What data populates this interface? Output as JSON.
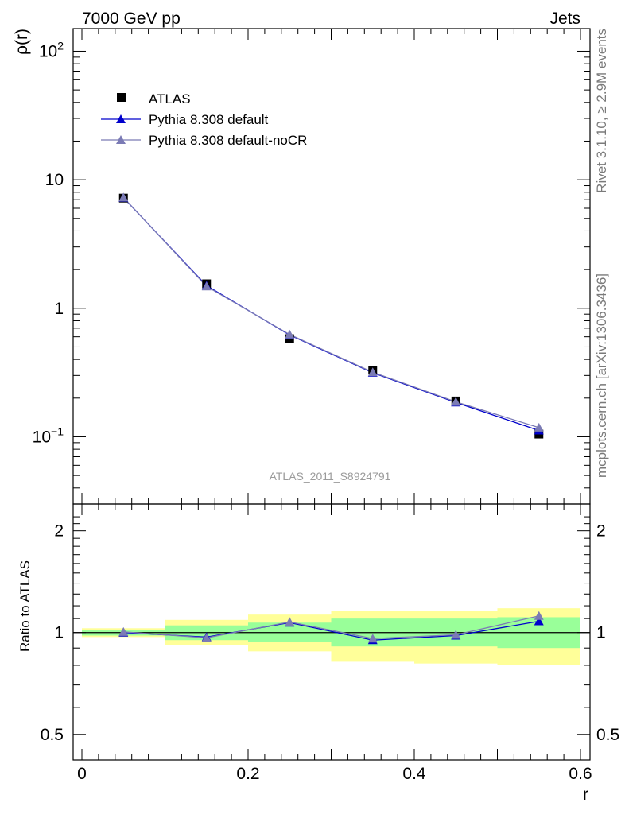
{
  "header": {
    "left": "7000 GeV pp",
    "right": "Jets"
  },
  "side_text": {
    "rivet": "Rivet 3.1.10, ≥ 2.9M events",
    "source": "mcplots.cern.ch [arXiv:1306.3436]"
  },
  "analysis_label": "ATLAS_2011_S8924791",
  "colors": {
    "atlas": "#000000",
    "pythia_default": "#0000cc",
    "pythia_nocr": "#7b7bb5",
    "band_inner": "#99ff99",
    "band_outer": "#ffff99"
  },
  "chart_data": [
    {
      "type": "line",
      "panel": "main",
      "ylabel": "ρ(r)",
      "yscale": "log",
      "ylim": [
        0.03,
        150
      ],
      "xlim": [
        0,
        0.6
      ],
      "ytick_labels": [
        "10⁻¹",
        "1",
        "10",
        "10²"
      ],
      "legend_position": "top-left",
      "x": [
        0.05,
        0.15,
        0.25,
        0.35,
        0.45,
        0.55
      ],
      "series": [
        {
          "name": "ATLAS",
          "marker": "square",
          "values": [
            7.2,
            1.55,
            0.58,
            0.33,
            0.19,
            0.105
          ]
        },
        {
          "name": "Pythia 8.308 default",
          "marker": "triangle",
          "values": [
            7.25,
            1.5,
            0.62,
            0.315,
            0.185,
            0.112
          ]
        },
        {
          "name": "Pythia 8.308 default-noCR",
          "marker": "triangle",
          "values": [
            7.28,
            1.48,
            0.625,
            0.318,
            0.187,
            0.118
          ]
        }
      ]
    },
    {
      "type": "line",
      "panel": "ratio",
      "ylabel": "Ratio to ATLAS",
      "xlabel": "r",
      "yscale": "log",
      "ylim": [
        0.42,
        2.4
      ],
      "xlim": [
        0,
        0.6
      ],
      "xtick_labels": [
        "0",
        "0.2",
        "0.4",
        "0.6"
      ],
      "ytick_labels": [
        "0.5",
        "1",
        "2"
      ],
      "x": [
        0.05,
        0.15,
        0.25,
        0.35,
        0.45,
        0.55
      ],
      "bin_edges": [
        0,
        0.1,
        0.2,
        0.3,
        0.4,
        0.5,
        0.6
      ],
      "band_inner": [
        [
          0.98,
          1.02
        ],
        [
          0.95,
          1.05
        ],
        [
          0.94,
          1.07
        ],
        [
          0.91,
          1.1
        ],
        [
          0.91,
          1.1
        ],
        [
          0.9,
          1.11
        ]
      ],
      "band_outer": [
        [
          0.97,
          1.03
        ],
        [
          0.92,
          1.09
        ],
        [
          0.88,
          1.13
        ],
        [
          0.82,
          1.16
        ],
        [
          0.81,
          1.16
        ],
        [
          0.8,
          1.18
        ]
      ],
      "series": [
        {
          "name": "Pythia 8.308 default",
          "values": [
            1.0,
            0.97,
            1.07,
            0.95,
            0.98,
            1.08
          ]
        },
        {
          "name": "Pythia 8.308 default-noCR",
          "values": [
            1.005,
            0.965,
            1.075,
            0.96,
            0.985,
            1.12
          ]
        }
      ]
    }
  ]
}
